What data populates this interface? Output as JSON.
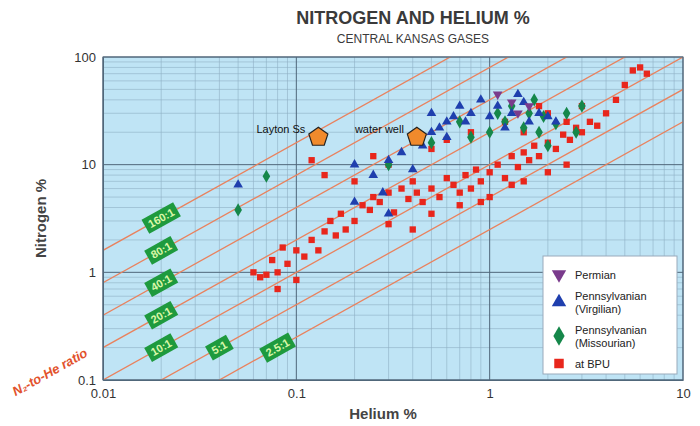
{
  "chart_data": {
    "type": "scatter",
    "title": "NITROGEN AND HELIUM %",
    "subtitle": "CENTRAL KANSAS GASES",
    "x_label": "Helium %",
    "y_label": "Nitrogen %",
    "log": true,
    "grid": true,
    "legend": "lower right",
    "xlim": [
      0.01,
      10
    ],
    "ylim": [
      0.1,
      100
    ],
    "xticks": [
      0.01,
      0.1,
      1,
      10
    ],
    "yticks": [
      0.1,
      1,
      10,
      100
    ],
    "ratio_lines_title": "N₂-to-He ratio",
    "ratio_lines": [
      {
        "label": "160:1",
        "ratio": 160
      },
      {
        "label": "80:1",
        "ratio": 80
      },
      {
        "label": "40:1",
        "ratio": 40
      },
      {
        "label": "20:1",
        "ratio": 20
      },
      {
        "label": "10:1",
        "ratio": 10
      },
      {
        "label": "5:1",
        "ratio": 5
      },
      {
        "label": "2.5:1",
        "ratio": 2.5
      }
    ],
    "annotations": [
      {
        "text": "Layton Ss",
        "x": 0.13,
        "y": 18,
        "marker": "pentagon",
        "color": "#f08a2c"
      },
      {
        "text": "water well",
        "x": 0.42,
        "y": 18,
        "marker": "pentagon",
        "color": "#f08a2c"
      }
    ],
    "series": [
      {
        "name": "Permian",
        "color": "#7a3b8c",
        "marker": "triangle-down",
        "x": [
          1.1,
          1.3,
          1.4,
          1.6
        ],
        "values": [
          45,
          38,
          30,
          35
        ]
      },
      {
        "name": "Pennsylvanian (Virgilian)",
        "color": "#1f3fae",
        "marker": "triangle",
        "x": [
          0.05,
          0.2,
          0.25,
          0.3,
          0.35,
          0.4,
          0.45,
          0.5,
          0.55,
          0.6,
          0.65,
          0.7,
          0.75,
          0.8,
          0.9,
          1.0,
          1.1,
          1.2,
          1.3,
          1.5,
          1.6,
          1.8,
          2.0,
          2.2,
          0.28,
          0.3,
          0.2,
          0.5,
          0.6,
          1.4
        ],
        "values": [
          6.5,
          10,
          8,
          11,
          13,
          9,
          15,
          20,
          22,
          18,
          28,
          35,
          25,
          30,
          40,
          28,
          35,
          22,
          30,
          38,
          25,
          30,
          28,
          25,
          5.5,
          3.5,
          4.5,
          30,
          25,
          45
        ]
      },
      {
        "name": "Pennsylvanian (Missourian)",
        "color": "#15874a",
        "marker": "diamond",
        "x": [
          0.05,
          0.07,
          0.3,
          0.5,
          0.7,
          0.8,
          1.0,
          1.1,
          1.2,
          1.3,
          1.5,
          1.6,
          1.8,
          1.9,
          2.0,
          2.2,
          2.5,
          3.0,
          1.7,
          2.8
        ],
        "values": [
          3.8,
          7.8,
          10,
          16,
          25,
          18,
          20,
          30,
          25,
          35,
          22,
          30,
          20,
          28,
          15,
          24,
          30,
          35,
          40,
          20
        ]
      },
      {
        "name": "at BPU",
        "color": "#e8261c",
        "marker": "square",
        "x": [
          0.06,
          0.065,
          0.07,
          0.075,
          0.08,
          0.085,
          0.09,
          0.1,
          0.11,
          0.12,
          0.13,
          0.14,
          0.15,
          0.16,
          0.17,
          0.18,
          0.2,
          0.22,
          0.24,
          0.25,
          0.27,
          0.3,
          0.32,
          0.35,
          0.38,
          0.4,
          0.42,
          0.45,
          0.5,
          0.55,
          0.6,
          0.65,
          0.7,
          0.75,
          0.8,
          0.85,
          0.9,
          1.0,
          1.1,
          1.2,
          1.3,
          1.4,
          1.5,
          1.6,
          1.7,
          1.8,
          2.0,
          2.2,
          2.4,
          2.6,
          2.8,
          3.0,
          3.3,
          3.6,
          4.0,
          4.5,
          5.0,
          5.5,
          6.0,
          6.5,
          0.12,
          0.25,
          0.3,
          0.5,
          0.8,
          1.2,
          1.5,
          2.0,
          2.5,
          1.8,
          3.0,
          0.6,
          0.14,
          0.2,
          0.3,
          0.5,
          0.7,
          1.0,
          1.5,
          2.0,
          0.4,
          0.9,
          1.3,
          2.5,
          0.08,
          0.1
        ],
        "values": [
          1.0,
          0.9,
          0.95,
          1.3,
          1.0,
          1.7,
          1.2,
          1.6,
          1.4,
          2.0,
          1.6,
          2.4,
          3.0,
          2.2,
          3.5,
          2.5,
          3.0,
          4.2,
          3.8,
          5.0,
          4.5,
          5.5,
          3.6,
          6.0,
          4.8,
          7.0,
          5.5,
          4.5,
          6.0,
          5.0,
          7.5,
          6.5,
          5.5,
          8.0,
          6.0,
          9.0,
          7.0,
          8.5,
          10,
          7.5,
          12,
          9.5,
          13,
          11,
          15,
          12,
          16,
          14,
          19,
          17,
          22,
          20,
          25,
          23,
          30,
          40,
          55,
          75,
          80,
          70,
          11,
          12,
          10,
          14,
          20,
          25,
          20,
          30,
          25,
          35,
          35,
          17,
          8,
          7,
          2.8,
          3.5,
          4.2,
          5,
          7,
          8.5,
          2.5,
          4.5,
          6.5,
          10,
          0.7,
          0.85
        ]
      }
    ]
  }
}
